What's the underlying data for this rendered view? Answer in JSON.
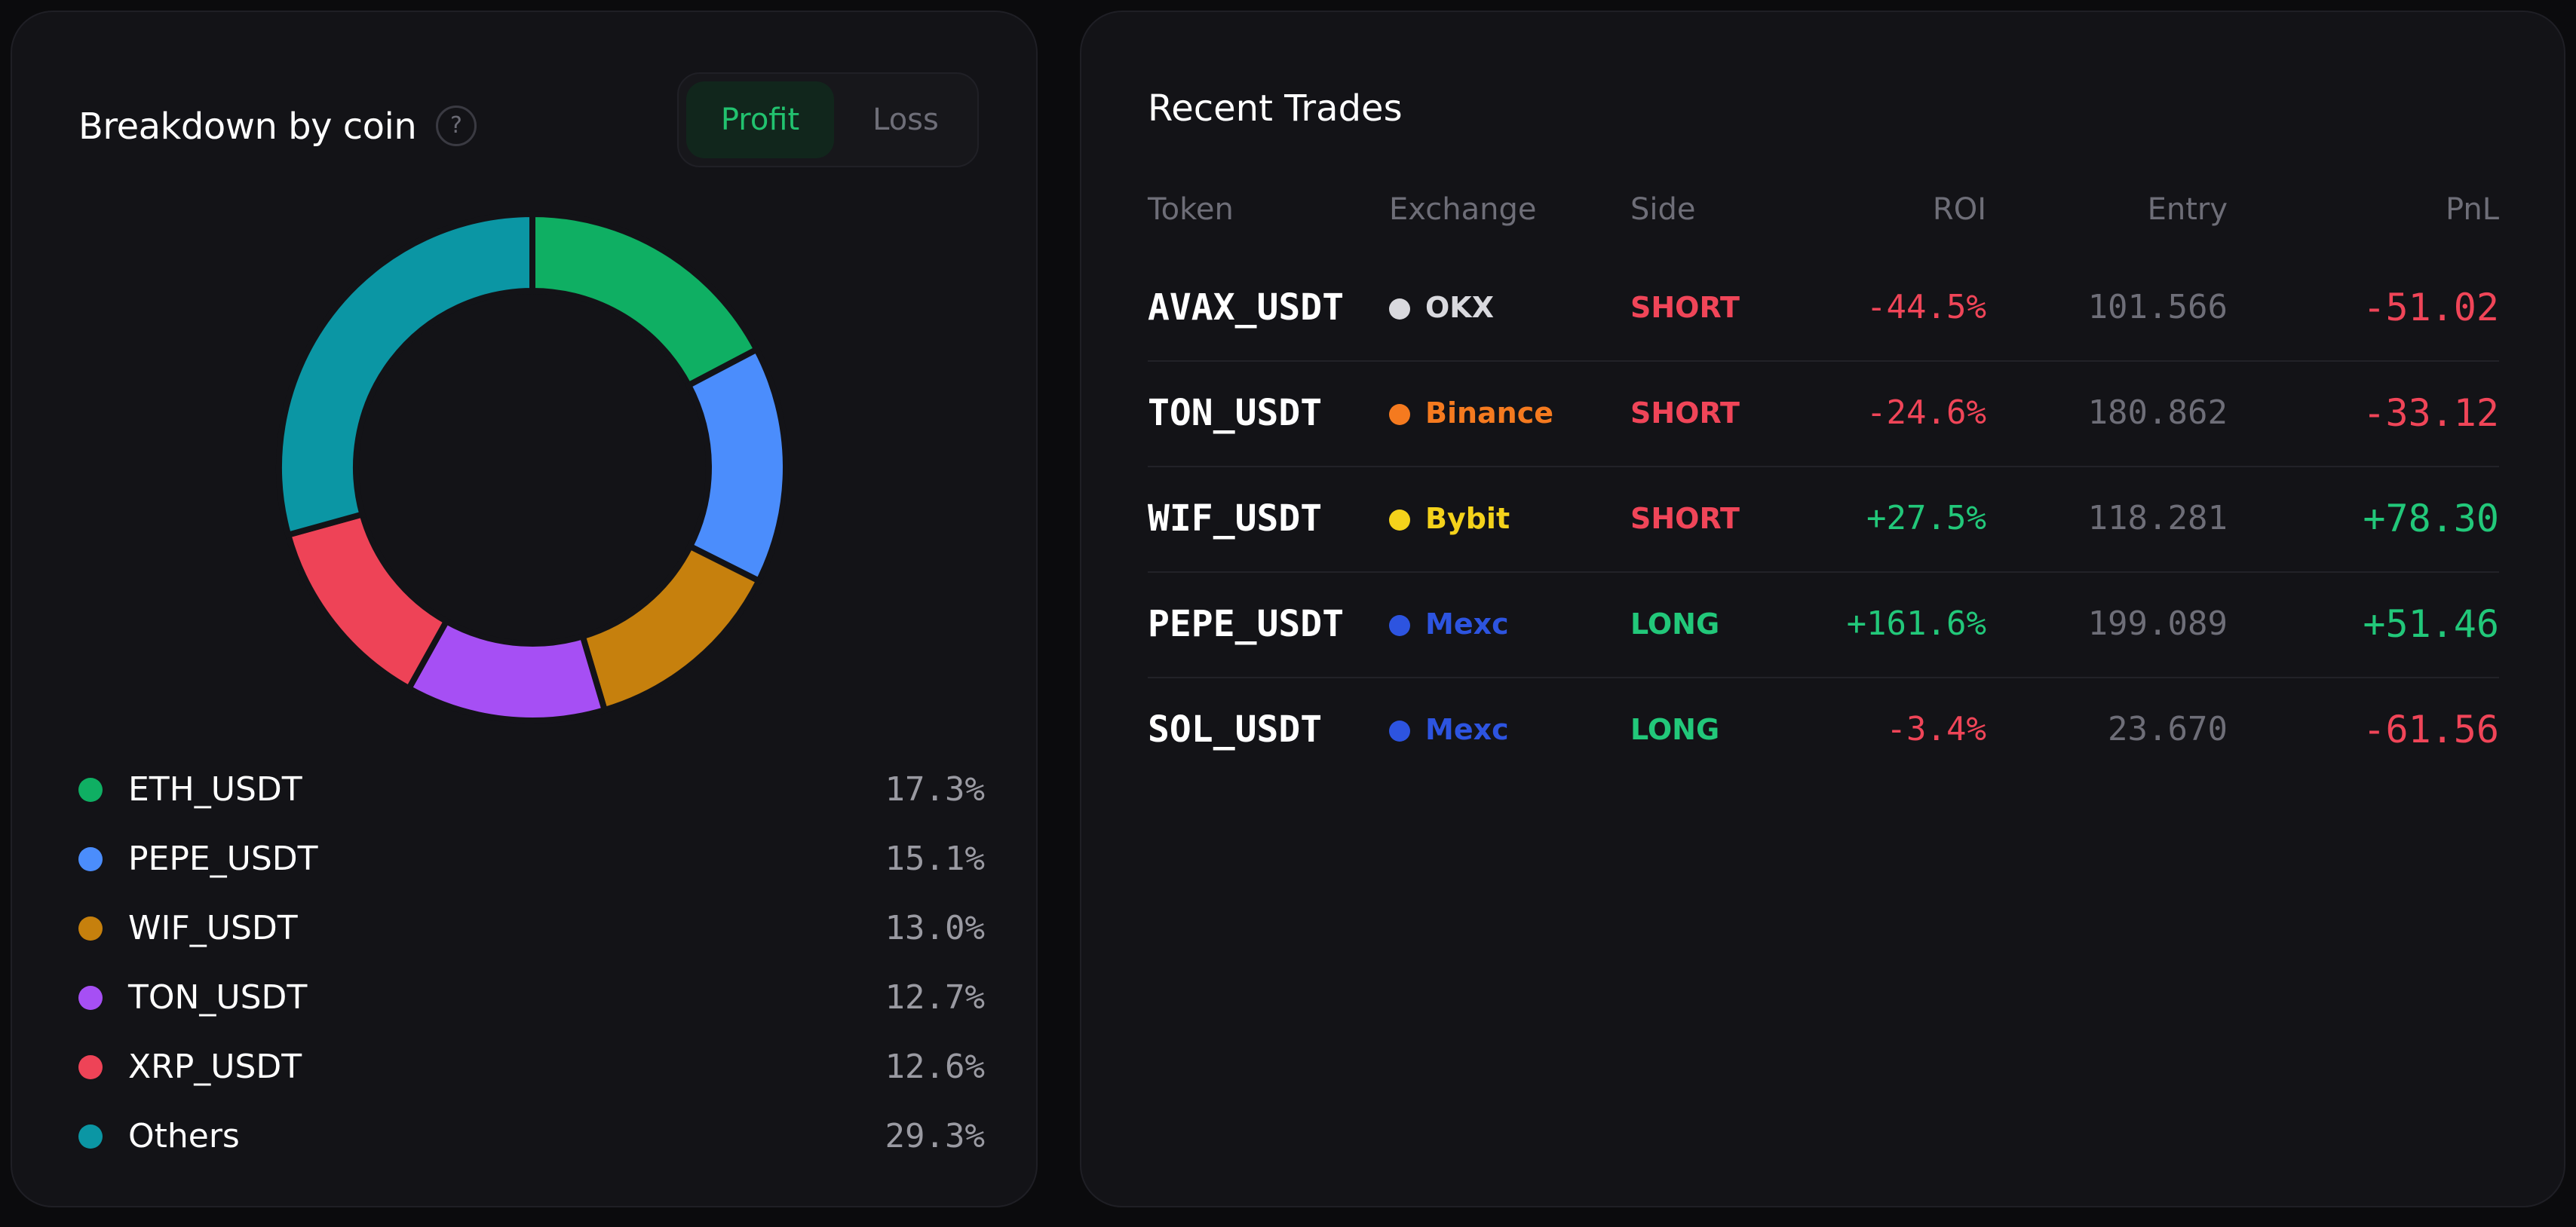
{
  "breakdown": {
    "title": "Breakdown by coin",
    "help_glyph": "?",
    "toggle": {
      "profit_label": "Profit",
      "loss_label": "Loss",
      "selected": "Profit"
    },
    "coins": [
      {
        "label": "ETH_USDT",
        "value_text": "17.3%",
        "percent": 17.3,
        "color": "#0faf63"
      },
      {
        "label": "PEPE_USDT",
        "value_text": "15.1%",
        "percent": 15.1,
        "color": "#4b8dfc"
      },
      {
        "label": "WIF_USDT",
        "value_text": "13.0%",
        "percent": 13.0,
        "color": "#c6800d"
      },
      {
        "label": "TON_USDT",
        "value_text": "12.7%",
        "percent": 12.7,
        "color": "#a64ff4"
      },
      {
        "label": "XRP_USDT",
        "value_text": "12.6%",
        "percent": 12.6,
        "color": "#ee4357"
      },
      {
        "label": "Others",
        "value_text": "29.3%",
        "percent": 29.3,
        "color": "#0b96a4"
      }
    ]
  },
  "recent_trades": {
    "title": "Recent Trades",
    "columns": {
      "token": "Token",
      "exchange": "Exchange",
      "side": "Side",
      "roi": "ROI",
      "entry": "Entry",
      "pnl": "PnL"
    },
    "rows": [
      {
        "token": "AVAX_USDT",
        "exchange": "OKX",
        "exchange_color": "#d9d9de",
        "side": "SHORT",
        "roi": "-44.5%",
        "entry": "101.566",
        "pnl": "-51.02"
      },
      {
        "token": "TON_USDT",
        "exchange": "Binance",
        "exchange_color": "#f57a1f",
        "side": "SHORT",
        "roi": "-24.6%",
        "entry": "180.862",
        "pnl": "-33.12"
      },
      {
        "token": "WIF_USDT",
        "exchange": "Bybit",
        "exchange_color": "#f4d21b",
        "side": "SHORT",
        "roi": "+27.5%",
        "entry": "118.281",
        "pnl": "+78.30"
      },
      {
        "token": "PEPE_USDT",
        "exchange": "Mexc",
        "exchange_color": "#2d54e0",
        "side": "LONG",
        "roi": "+161.6%",
        "entry": "199.089",
        "pnl": "+51.46"
      },
      {
        "token": "SOL_USDT",
        "exchange": "Mexc",
        "exchange_color": "#2d54e0",
        "side": "LONG",
        "roi": "-3.4%",
        "entry": "23.670",
        "pnl": "-61.56"
      }
    ]
  },
  "colors": {
    "positive": "#22c87a",
    "negative": "#f04558"
  }
}
